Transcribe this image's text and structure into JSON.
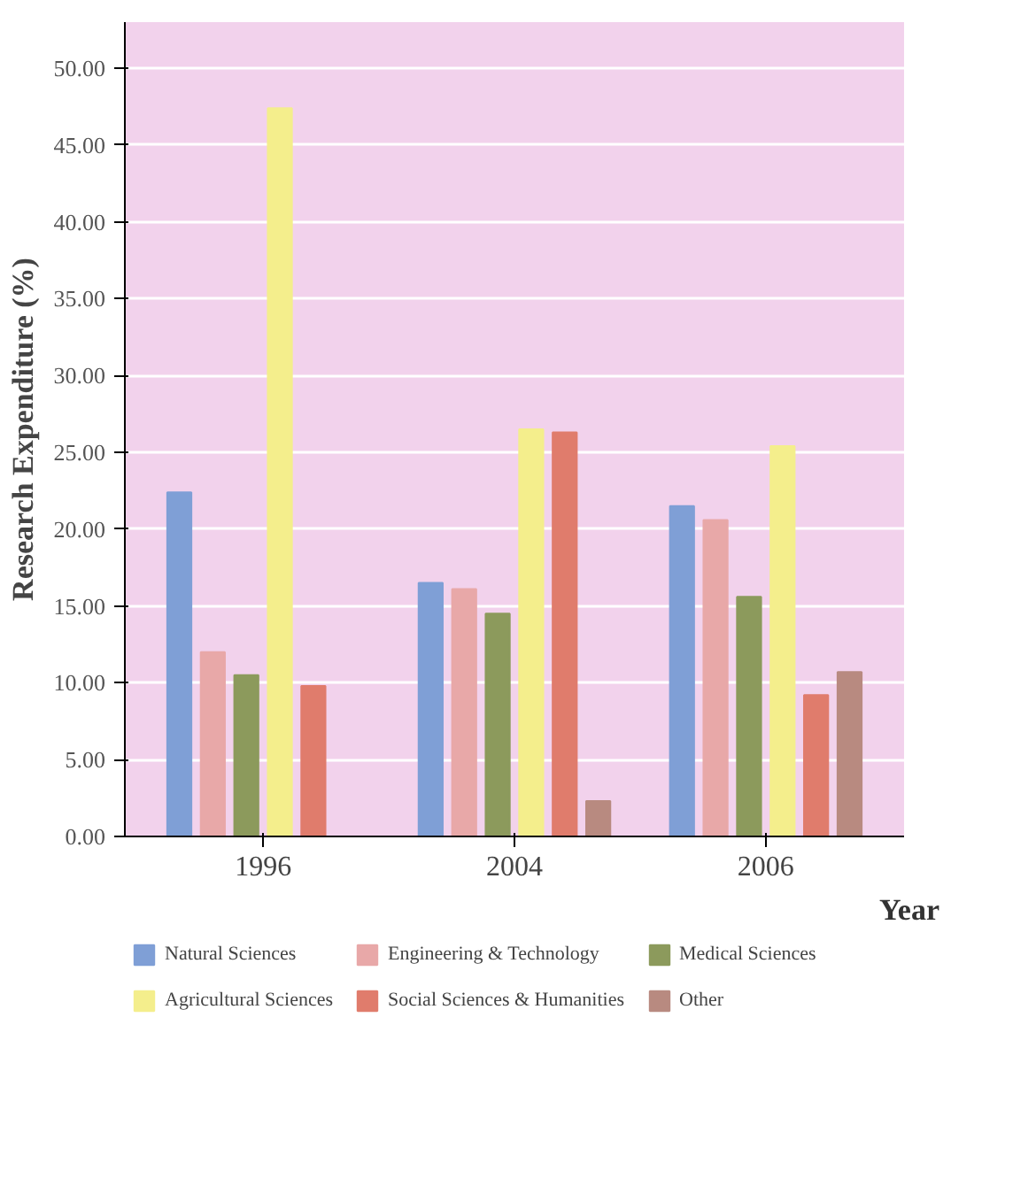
{
  "chart_data": {
    "type": "bar",
    "ylabel": "Research Expenditure (%)",
    "xlabel": "Year",
    "categories": [
      "1996",
      "2004",
      "2006"
    ],
    "series": [
      {
        "name": "Natural Sciences",
        "color": "#7f9fd6",
        "values": [
          22.4,
          16.5,
          21.5
        ]
      },
      {
        "name": "Engineering & Technology",
        "color": "#e8a8a8",
        "values": [
          12,
          16.1,
          20.6
        ]
      },
      {
        "name": "Medical Sciences",
        "color": "#8c9a5c",
        "values": [
          10.5,
          14.5,
          15.6
        ]
      },
      {
        "name": "Agricultural Sciences",
        "color": "#f4ee8c",
        "values": [
          47.4,
          26.5,
          25.4
        ]
      },
      {
        "name": "Social Sciences & Humanities",
        "color": "#e07c6c",
        "values": [
          9.8,
          26.3,
          9.2
        ]
      },
      {
        "name": "Other",
        "color": "#b88a80",
        "values": [
          null,
          2.3,
          10.7
        ]
      }
    ],
    "ylim": [
      0,
      53
    ],
    "yticks": [
      {
        "value": 0,
        "label": "0.00"
      },
      {
        "value": 5,
        "label": "5.00"
      },
      {
        "value": 10,
        "label": "10.00"
      },
      {
        "value": 15,
        "label": "15.00"
      },
      {
        "value": 20,
        "label": "20.00"
      },
      {
        "value": 25,
        "label": "25.00"
      },
      {
        "value": 30,
        "label": "30.00"
      },
      {
        "value": 35,
        "label": "35.00"
      },
      {
        "value": 40,
        "label": "40.00"
      },
      {
        "value": 45,
        "label": "45.00"
      },
      {
        "value": 50,
        "label": "50.00"
      }
    ],
    "grid": "y",
    "legend": "bottom"
  }
}
